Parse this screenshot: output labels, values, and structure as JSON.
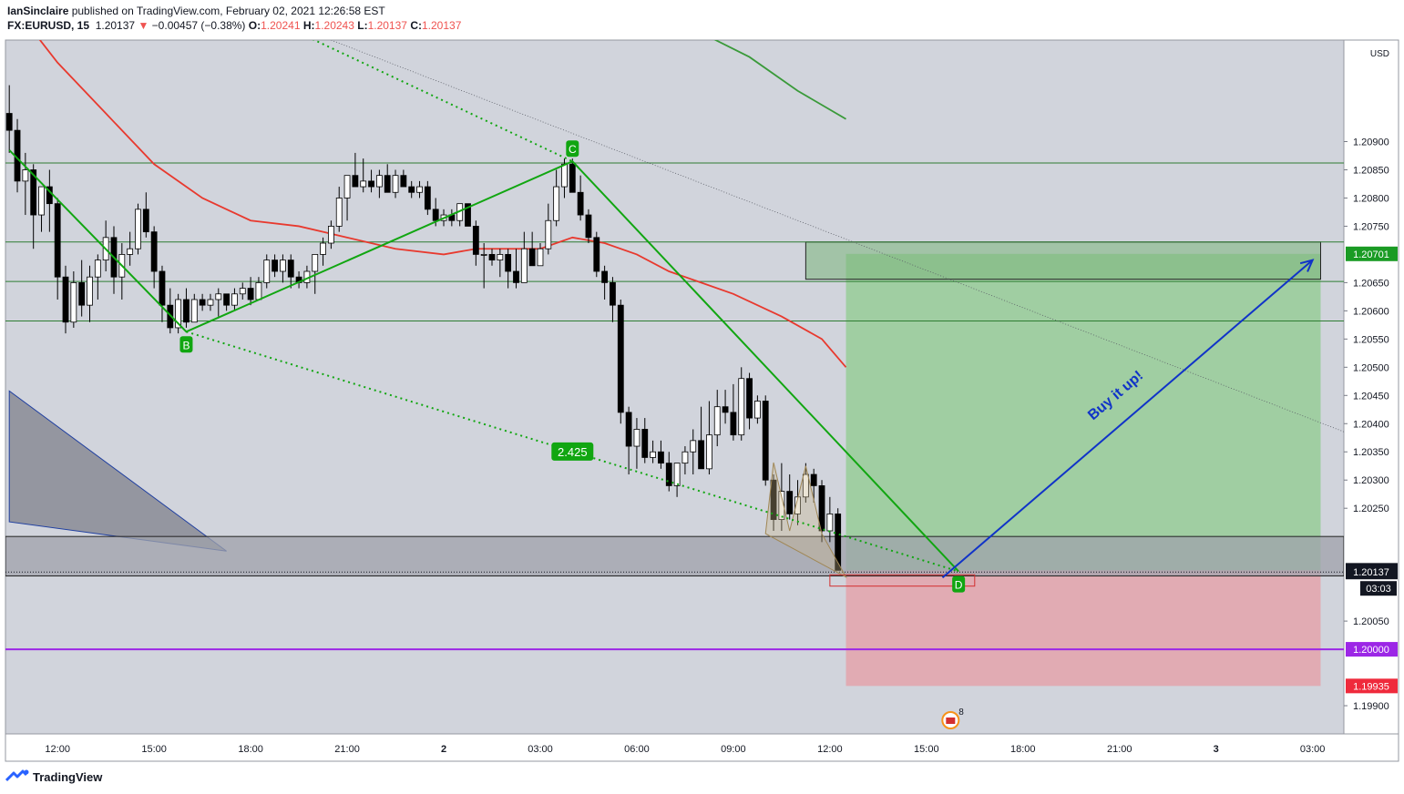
{
  "header": {
    "publisher": "IanSinclaire",
    "published_on": " published on TradingView.com, February 02, 2021 12:26:58 EST",
    "symbol": "FX:EURUSD, 15",
    "last": "1.20137",
    "down_arrow": "▼",
    "change": "−0.00457 (−0.38%)",
    "o_label": "O:",
    "o_value": "1.20241",
    "h_label": "H:",
    "h_value": "1.20243",
    "l_label": "L:",
    "l_value": "1.20137",
    "c_label": "C:",
    "c_value": "1.20137"
  },
  "footer": {
    "brand": "TradingView",
    "logo_icon": "tradingview-logo-icon"
  },
  "colors": {
    "background": "#d1d4dc",
    "pane_border": "#9598a1",
    "bull_body": "#ffffff",
    "bear_body": "#000000",
    "wick": "#000000",
    "ma_red": "#e8392e",
    "ma_green": "#3a9a3a",
    "pattern_green": "#11a611",
    "arrow_blue": "#1033c8",
    "hline_green": "#2e7d32",
    "purple_line": "#9c27e6",
    "profit_fill": "#8fcc8f",
    "loss_fill": "#e4a3ab",
    "gray_zone": "#9fa2ab",
    "triangle_fill": "#7f828c",
    "price_down": "#ef5350"
  },
  "chart_data": {
    "type": "candlestick",
    "symbol": "FX:EURUSD",
    "interval": "15",
    "currency_label": "USD",
    "ylim": [
      1.1985,
      1.2108
    ],
    "y_ticks": [
      "1.19900",
      "1.20050",
      "1.20250",
      "1.20300",
      "1.20350",
      "1.20400",
      "1.20450",
      "1.20500",
      "1.20550",
      "1.20600",
      "1.20650",
      "1.20750",
      "1.20800",
      "1.20850",
      "1.20900"
    ],
    "x_ticks": [
      {
        "t": "12:00",
        "bar": 6,
        "bold": false
      },
      {
        "t": "15:00",
        "bar": 18,
        "bold": false
      },
      {
        "t": "18:00",
        "bar": 30,
        "bold": false
      },
      {
        "t": "21:00",
        "bar": 42,
        "bold": false
      },
      {
        "t": "2",
        "bar": 54,
        "bold": true
      },
      {
        "t": "03:00",
        "bar": 66,
        "bold": false
      },
      {
        "t": "06:00",
        "bar": 78,
        "bold": false
      },
      {
        "t": "09:00",
        "bar": 90,
        "bold": false
      },
      {
        "t": "12:00",
        "bar": 102,
        "bold": false
      },
      {
        "t": "15:00",
        "bar": 114,
        "bold": false
      },
      {
        "t": "18:00",
        "bar": 126,
        "bold": false
      },
      {
        "t": "21:00",
        "bar": 138,
        "bold": false
      },
      {
        "t": "3",
        "bar": 150,
        "bold": true
      },
      {
        "t": "03:00",
        "bar": 162,
        "bold": false
      }
    ],
    "ohlc": [
      [
        1.2095,
        1.21,
        1.2088,
        1.2092
      ],
      [
        1.2092,
        1.2094,
        1.2081,
        1.2083
      ],
      [
        1.2083,
        1.2088,
        1.2077,
        1.2085
      ],
      [
        1.2085,
        1.2086,
        1.2071,
        1.2077
      ],
      [
        1.2077,
        1.2082,
        1.2074,
        1.2082
      ],
      [
        1.2082,
        1.2085,
        1.2074,
        1.2079
      ],
      [
        1.2079,
        1.208,
        1.2062,
        1.2066
      ],
      [
        1.2066,
        1.2068,
        1.2056,
        1.2058
      ],
      [
        1.2058,
        1.2067,
        1.2057,
        1.2065
      ],
      [
        1.2065,
        1.2069,
        1.2059,
        1.2061
      ],
      [
        1.2061,
        1.2068,
        1.2058,
        1.2066
      ],
      [
        1.2066,
        1.207,
        1.2062,
        1.2069
      ],
      [
        1.2069,
        1.2076,
        1.2067,
        1.2073
      ],
      [
        1.2073,
        1.2075,
        1.2063,
        1.2066
      ],
      [
        1.2066,
        1.2072,
        1.2062,
        1.207
      ],
      [
        1.207,
        1.2074,
        1.2068,
        1.2071
      ],
      [
        1.2071,
        1.2079,
        1.207,
        1.2078
      ],
      [
        1.2078,
        1.2081,
        1.2073,
        1.2074
      ],
      [
        1.2074,
        1.2075,
        1.2064,
        1.2067
      ],
      [
        1.2067,
        1.2068,
        1.2058,
        1.2061
      ],
      [
        1.2061,
        1.2064,
        1.2056,
        1.2057
      ],
      [
        1.2057,
        1.2063,
        1.2056,
        1.2062
      ],
      [
        1.2062,
        1.2064,
        1.2057,
        1.2058
      ],
      [
        1.2058,
        1.2063,
        1.2058,
        1.2062
      ],
      [
        1.2062,
        1.2063,
        1.206,
        1.2061
      ],
      [
        1.2061,
        1.2063,
        1.206,
        1.2062
      ],
      [
        1.2062,
        1.2064,
        1.2059,
        1.2063
      ],
      [
        1.2063,
        1.2063,
        1.206,
        1.2061
      ],
      [
        1.2061,
        1.2064,
        1.206,
        1.2063
      ],
      [
        1.2063,
        1.2065,
        1.2062,
        1.2064
      ],
      [
        1.2064,
        1.2066,
        1.2061,
        1.2062
      ],
      [
        1.2062,
        1.2066,
        1.2062,
        1.2065
      ],
      [
        1.2065,
        1.207,
        1.2064,
        1.2069
      ],
      [
        1.2069,
        1.207,
        1.2066,
        1.2067
      ],
      [
        1.2067,
        1.207,
        1.2065,
        1.2069
      ],
      [
        1.2069,
        1.207,
        1.2064,
        1.2066
      ],
      [
        1.2066,
        1.2067,
        1.2064,
        1.2065
      ],
      [
        1.2065,
        1.2068,
        1.2064,
        1.2067
      ],
      [
        1.2067,
        1.207,
        1.2063,
        1.207
      ],
      [
        1.207,
        1.2073,
        1.2068,
        1.2072
      ],
      [
        1.2072,
        1.2076,
        1.2071,
        1.2075
      ],
      [
        1.2075,
        1.2082,
        1.2074,
        1.208
      ],
      [
        1.208,
        1.2084,
        1.2076,
        1.2084
      ],
      [
        1.2084,
        1.2088,
        1.2082,
        1.2082
      ],
      [
        1.2082,
        1.2087,
        1.2081,
        1.2083
      ],
      [
        1.2083,
        1.2085,
        1.2081,
        1.2082
      ],
      [
        1.2082,
        1.2085,
        1.208,
        1.2084
      ],
      [
        1.2084,
        1.2086,
        1.2081,
        1.2081
      ],
      [
        1.2081,
        1.2085,
        1.208,
        1.2084
      ],
      [
        1.2084,
        1.2085,
        1.2082,
        1.2082
      ],
      [
        1.2082,
        1.2083,
        1.208,
        1.2081
      ],
      [
        1.2081,
        1.2083,
        1.208,
        1.2082
      ],
      [
        1.2082,
        1.2083,
        1.2077,
        1.2078
      ],
      [
        1.2078,
        1.208,
        1.2075,
        1.2076
      ],
      [
        1.2076,
        1.2078,
        1.2075,
        1.2077
      ],
      [
        1.2077,
        1.2078,
        1.2075,
        1.2076
      ],
      [
        1.2076,
        1.2079,
        1.2075,
        1.2079
      ],
      [
        1.2079,
        1.2079,
        1.2075,
        1.2075
      ],
      [
        1.2075,
        1.2076,
        1.2068,
        1.207
      ],
      [
        1.207,
        1.2072,
        1.2064,
        1.207
      ],
      [
        1.207,
        1.2071,
        1.2068,
        1.2069
      ],
      [
        1.2069,
        1.2071,
        1.2066,
        1.207
      ],
      [
        1.207,
        1.2071,
        1.2064,
        1.2067
      ],
      [
        1.2067,
        1.2071,
        1.2064,
        1.2065
      ],
      [
        1.2065,
        1.2074,
        1.2065,
        1.2071
      ],
      [
        1.2071,
        1.2074,
        1.2068,
        1.2068
      ],
      [
        1.2068,
        1.2072,
        1.2068,
        1.2071
      ],
      [
        1.2071,
        1.2079,
        1.207,
        1.2076
      ],
      [
        1.2076,
        1.2085,
        1.2075,
        1.2082
      ],
      [
        1.2082,
        1.2087,
        1.208,
        1.2086
      ],
      [
        1.2086,
        1.2087,
        1.2081,
        1.2081
      ],
      [
        1.2081,
        1.2084,
        1.2076,
        1.2077
      ],
      [
        1.2077,
        1.2078,
        1.2072,
        1.2073
      ],
      [
        1.2073,
        1.2074,
        1.2066,
        1.2067
      ],
      [
        1.2067,
        1.2068,
        1.2062,
        1.2065
      ],
      [
        1.2065,
        1.2066,
        1.2058,
        1.2061
      ],
      [
        1.2061,
        1.2062,
        1.204,
        1.2042
      ],
      [
        1.2042,
        1.2043,
        1.2031,
        1.2036
      ],
      [
        1.2036,
        1.2041,
        1.2032,
        1.2039
      ],
      [
        1.2039,
        1.2041,
        1.2033,
        1.2034
      ],
      [
        1.2034,
        1.2037,
        1.2033,
        1.2035
      ],
      [
        1.2035,
        1.2037,
        1.2032,
        1.2033
      ],
      [
        1.2033,
        1.2035,
        1.2028,
        1.2029
      ],
      [
        1.2029,
        1.2033,
        1.2027,
        1.2033
      ],
      [
        1.2033,
        1.2036,
        1.2031,
        1.2035
      ],
      [
        1.2035,
        1.2039,
        1.2031,
        1.2037
      ],
      [
        1.2037,
        1.2043,
        1.2033,
        1.2032
      ],
      [
        1.2032,
        1.2044,
        1.2031,
        1.2038
      ],
      [
        1.2038,
        1.2046,
        1.2036,
        1.2043
      ],
      [
        1.2043,
        1.2046,
        1.204,
        1.2042
      ],
      [
        1.2042,
        1.2047,
        1.2037,
        1.2038
      ],
      [
        1.2038,
        1.205,
        1.2037,
        1.2048
      ],
      [
        1.2048,
        1.2049,
        1.2039,
        1.2041
      ],
      [
        1.2041,
        1.2045,
        1.204,
        1.2044
      ],
      [
        1.2044,
        1.2045,
        1.2029,
        1.203
      ],
      [
        1.203,
        1.2031,
        1.2021,
        1.2023
      ],
      [
        1.2023,
        1.2033,
        1.2021,
        1.2028
      ],
      [
        1.2028,
        1.2031,
        1.2023,
        1.2024
      ],
      [
        1.2024,
        1.203,
        1.2022,
        1.2027
      ],
      [
        1.2027,
        1.2033,
        1.2026,
        1.2031
      ],
      [
        1.2031,
        1.2032,
        1.2026,
        1.2029
      ],
      [
        1.2029,
        1.203,
        1.2019,
        1.2021
      ],
      [
        1.2021,
        1.2027,
        1.2019,
        1.2024
      ],
      [
        1.2024,
        1.2025,
        1.2014,
        1.2014
      ]
    ],
    "ma_red": [
      [
        0,
        1.2115
      ],
      [
        6,
        1.2104
      ],
      [
        12,
        1.2095
      ],
      [
        18,
        1.2086
      ],
      [
        24,
        1.208
      ],
      [
        30,
        1.2076
      ],
      [
        36,
        1.2075
      ],
      [
        42,
        1.2073
      ],
      [
        48,
        1.2071
      ],
      [
        54,
        1.207
      ],
      [
        58,
        1.2071
      ],
      [
        62,
        1.2071
      ],
      [
        66,
        1.2071
      ],
      [
        70,
        1.2073
      ],
      [
        74,
        1.2072
      ],
      [
        78,
        1.207
      ],
      [
        82,
        1.2067
      ],
      [
        86,
        1.2065
      ],
      [
        90,
        1.2063
      ],
      [
        96,
        1.2059
      ],
      [
        101,
        1.2055
      ],
      [
        104,
        1.205
      ]
    ],
    "ma_green": [
      [
        85,
        1.211
      ],
      [
        92,
        1.2105
      ],
      [
        98,
        1.2099
      ],
      [
        104,
        1.2094
      ]
    ],
    "horizontal_lines": [
      {
        "price": 1.20862,
        "color": "hline_green"
      },
      {
        "price": 1.20722,
        "color": "hline_green"
      },
      {
        "price": 1.20652,
        "color": "hline_green"
      },
      {
        "price": 1.20582,
        "color": "hline_green"
      },
      {
        "price": 1.2,
        "color": "purple_line"
      }
    ],
    "pattern": {
      "points": [
        {
          "label": "",
          "bar": 0,
          "price": 1.20885
        },
        {
          "label": "B",
          "bar": 22,
          "price": 1.20563
        },
        {
          "label": "C",
          "bar": 70,
          "price": 1.20865
        },
        {
          "label": "D",
          "bar": 118,
          "price": 1.20138
        }
      ],
      "ratio_label": "2.425"
    },
    "projection_dotted": [
      {
        "bar": 26,
        "price": 1.2116
      },
      {
        "bar": 70,
        "price": 1.20865
      }
    ],
    "bd_dotted": [
      {
        "bar": 22,
        "price": 1.20563
      },
      {
        "bar": 118,
        "price": 1.20138
      }
    ],
    "trend_thin_dotted": [
      {
        "bar": 40,
        "price": 1.2108
      },
      {
        "bar": 166,
        "price": 1.20385
      }
    ],
    "triangle": [
      {
        "bar": 0,
        "price": 1.20458
      },
      {
        "bar": 0,
        "price": 1.20226
      },
      {
        "bar": 27,
        "price": 1.20174
      }
    ],
    "harmonic_small": [
      {
        "bar": 94,
        "price": 1.20205
      },
      {
        "bar": 95,
        "price": 1.20331
      },
      {
        "bar": 97,
        "price": 1.2021
      },
      {
        "bar": 99,
        "price": 1.20325
      },
      {
        "bar": 101,
        "price": 1.20205
      },
      {
        "bar": 104,
        "price": 1.20128
      }
    ],
    "gray_zone": {
      "top": 1.202,
      "bottom": 1.2013
    },
    "position": {
      "from_bar": 104,
      "to_bar": 163,
      "entry": 1.2014,
      "target": 1.20701,
      "stop": 1.19935
    },
    "target_box": {
      "from_bar": 99,
      "to_bar": 163,
      "top": 1.20722,
      "bottom": 1.20656
    },
    "buy_arrow": {
      "from": {
        "bar": 116,
        "price": 1.20127
      },
      "to": {
        "bar": 162,
        "price": 1.2069
      },
      "label": "Buy it up!"
    },
    "red_box": {
      "from_bar": 102,
      "to_bar": 120,
      "top": 1.20132,
      "bottom": 1.20112
    },
    "axis_labels": [
      {
        "text": "1.20701",
        "price": 1.20701,
        "bg": "#1a9b24",
        "fg": "#ffffff"
      },
      {
        "text": "1.20140",
        "price": 1.2014,
        "bg": "#131722",
        "fg": "#ffffff"
      },
      {
        "text": "1.20137",
        "price": 1.20137,
        "bg": "#131722",
        "fg": "#ffffff"
      },
      {
        "text": "03:03",
        "price": 1.20112,
        "bg": "#131722",
        "fg": "#ffffff"
      },
      {
        "text": "1.20000",
        "price": 1.2,
        "bg": "#9c27e6",
        "fg": "#ffffff"
      },
      {
        "text": "1.19935",
        "price": 1.19935,
        "bg": "#ef2a3c",
        "fg": "#ffffff"
      }
    ],
    "events_badge": {
      "bar": 117,
      "count": "8"
    }
  }
}
